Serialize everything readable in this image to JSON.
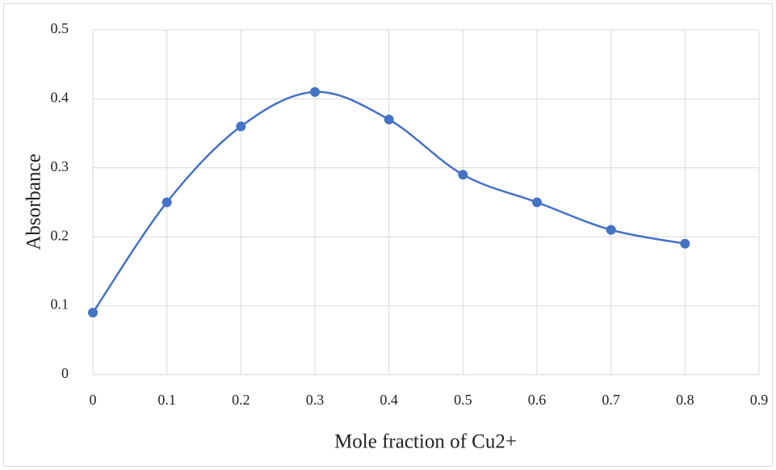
{
  "chart_data": {
    "type": "scatter-smooth",
    "x_label": "Mole fraction of Cu2+",
    "y_label": "Absorbance",
    "x": [
      0,
      0.1,
      0.2,
      0.3,
      0.4,
      0.5,
      0.6,
      0.7,
      0.8
    ],
    "series": [
      {
        "color": "#4472c4",
        "values": [
          0.09,
          0.25,
          0.36,
          0.41,
          0.37,
          0.29,
          0.25,
          0.21,
          0.19
        ]
      }
    ],
    "xlim": [
      0,
      0.9
    ],
    "xticks": [
      0,
      0.1,
      0.2,
      0.3,
      0.4,
      0.5,
      0.6,
      0.7,
      0.8,
      0.9
    ],
    "ylim": [
      0,
      0.5
    ],
    "yticks": [
      0,
      0.1,
      0.2,
      0.3,
      0.4,
      0.5
    ],
    "grid": true
  }
}
